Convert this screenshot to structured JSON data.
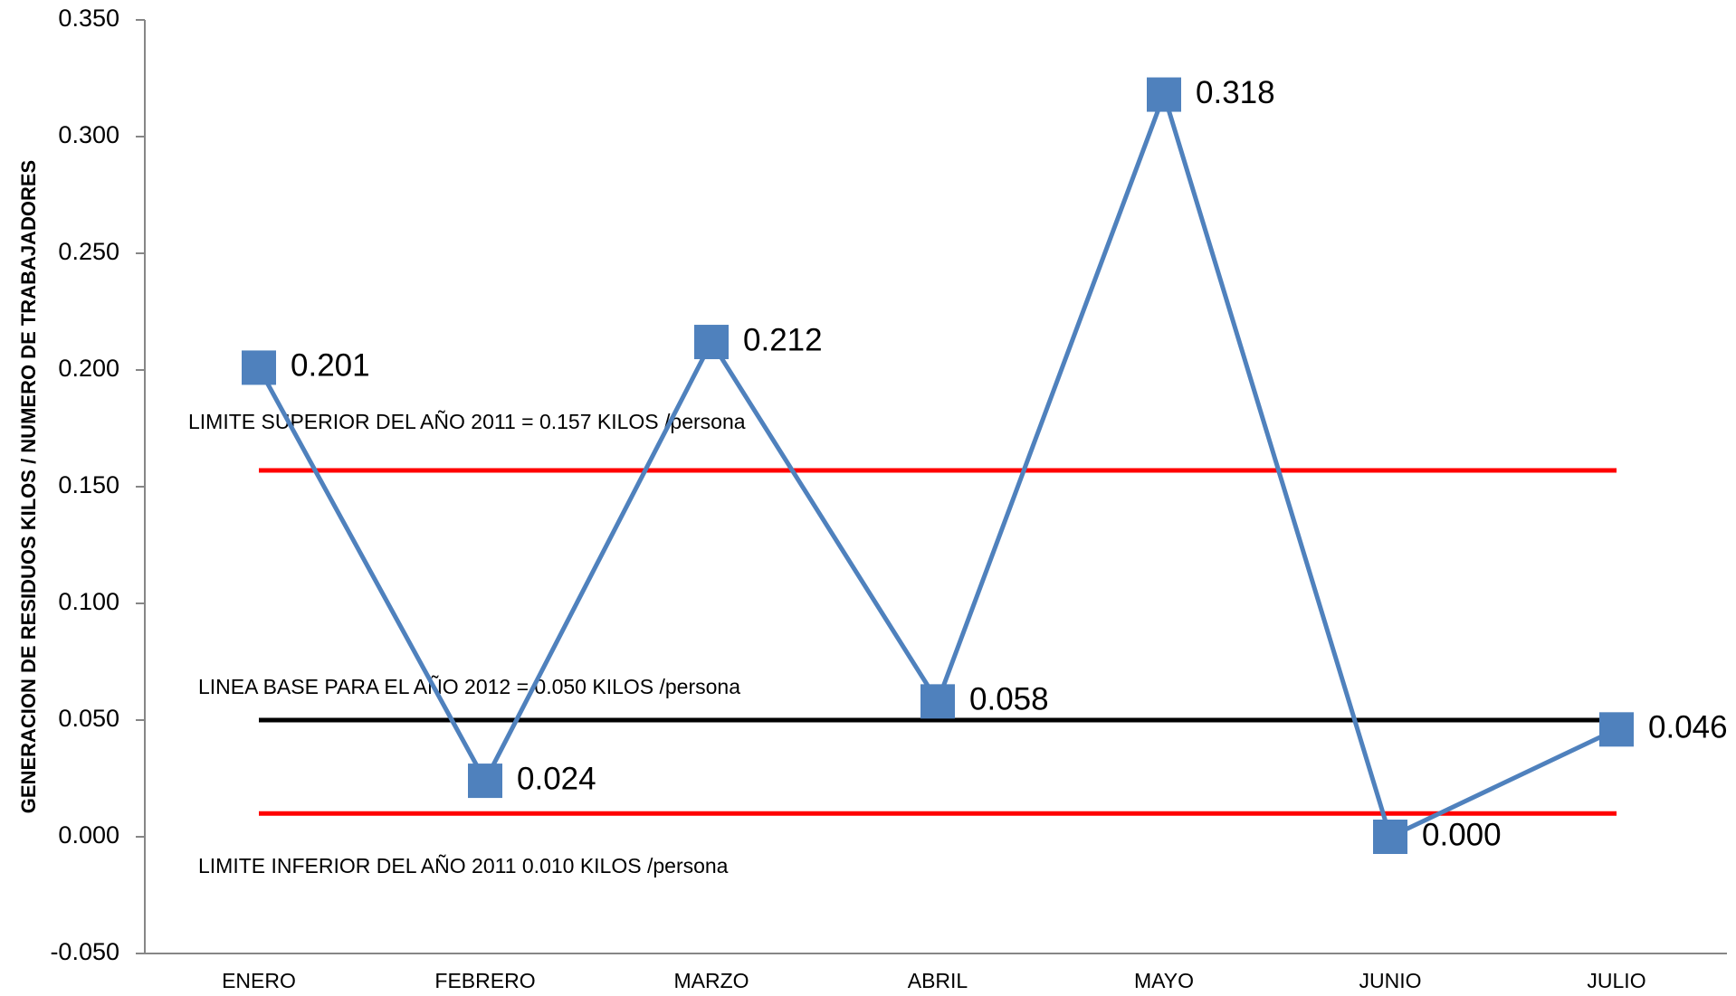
{
  "chart_data": {
    "type": "line",
    "title": "",
    "xlabel": "",
    "ylabel": "GENERACION DE RESIDUOS KILOS / NUMERO DE TRABAJADORES",
    "categories": [
      "ENERO",
      "FEBRERO",
      "MARZO",
      "ABRIL",
      "MAYO",
      "JUNIO",
      "JULIO"
    ],
    "series": [
      {
        "values": [
          0.201,
          0.024,
          0.212,
          0.058,
          0.318,
          0.0,
          0.046
        ],
        "labels": [
          "0.201",
          "0.024",
          "0.212",
          "0.058",
          "0.318",
          "0.000",
          "0.046"
        ],
        "color": "#4F81BD",
        "marker": "square"
      }
    ],
    "ylim": [
      -0.05,
      0.35
    ],
    "ytick_values": [
      -0.05,
      0,
      0.05,
      0.1,
      0.15,
      0.2,
      0.25,
      0.3,
      0.35
    ],
    "yticks": [
      "-0.050",
      "0.000",
      "0.050",
      "0.100",
      "0.150",
      "0.200",
      "0.250",
      "0.300",
      "0.350"
    ],
    "grid": false,
    "reference_lines": [
      {
        "value": 0.157,
        "color": "#FF0000",
        "text": "LIMITE SUPERIOR DEL AÑO 2011 = 0.157 KILOS /persona"
      },
      {
        "value": 0.05,
        "color": "#000000",
        "text": "LINEA BASE PARA EL AÑO 2012 = 0.050  KILOS /persona"
      },
      {
        "value": 0.01,
        "color": "#FF0000",
        "text": "LIMITE INFERIOR DEL AÑO 2011 0.010 KILOS /persona"
      }
    ]
  }
}
